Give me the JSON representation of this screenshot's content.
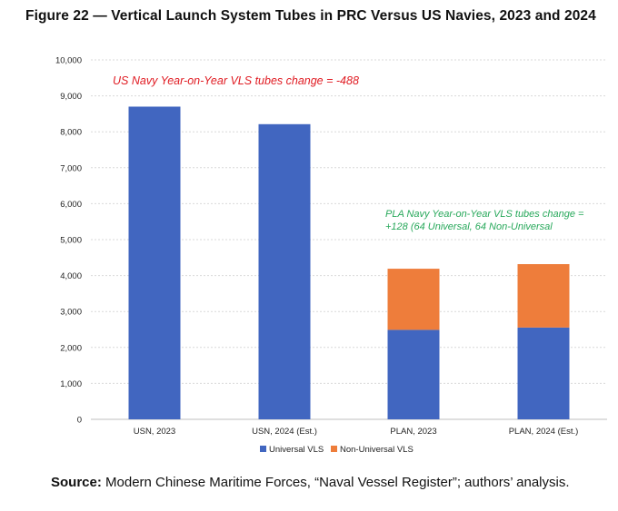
{
  "figure": {
    "title": "Figure 22 — Vertical Launch System Tubes in PRC Versus US Navies, 2023 and 2024",
    "source_label": "Source:",
    "source_text": " Modern Chinese Maritime Forces, “Naval Vessel Register”; authors’ analysis."
  },
  "colors": {
    "universal": "#4166c0",
    "non_universal": "#ee7d3b",
    "annotation_us": "#e01b22",
    "annotation_pla": "#27a85a",
    "grid": "#d9d9d9"
  },
  "chart_data": {
    "type": "bar",
    "stacked": true,
    "title": "",
    "xlabel": "",
    "ylabel": "",
    "ylim": [
      0,
      10000
    ],
    "ytick_values": [
      0,
      1000,
      2000,
      3000,
      4000,
      5000,
      6000,
      7000,
      8000,
      9000,
      10000
    ],
    "ytick_labels": [
      "0",
      "1,000",
      "2,000",
      "3,000",
      "4,000",
      "5,000",
      "6,000",
      "7,000",
      "8,000",
      "9,000",
      "10,000"
    ],
    "categories": [
      "USN, 2023",
      "USN, 2024 (Est.)",
      "PLAN, 2023",
      "PLAN, 2024 (Est.)"
    ],
    "series": [
      {
        "name": "Universal VLS",
        "color": "#4166c0",
        "values": [
          8700,
          8212,
          2490,
          2554
        ]
      },
      {
        "name": "Non-Universal VLS",
        "color": "#ee7d3b",
        "values": [
          0,
          0,
          1700,
          1764
        ]
      }
    ],
    "grid": true,
    "legend_position": "bottom-center",
    "annotations": [
      {
        "text": "US Navy Year-on-Year VLS tubes change = -488",
        "color": "#e01b22"
      },
      {
        "text": "PLA Navy Year-on-Year VLS tubes change =",
        "color": "#27a85a"
      },
      {
        "text": "+128 (64 Universal, 64 Non-Universal",
        "color": "#27a85a"
      }
    ]
  }
}
